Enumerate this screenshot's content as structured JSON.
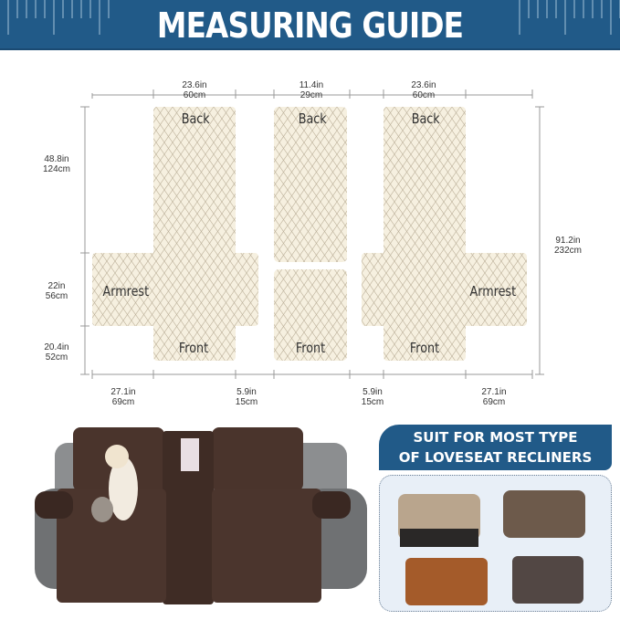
{
  "header": {
    "title": "MEASURING GUIDE",
    "color": "#215a88"
  },
  "top_dims": [
    {
      "in": "23.6in",
      "cm": "60cm"
    },
    {
      "in": "11.4in",
      "cm": "29cm"
    },
    {
      "in": "23.6in",
      "cm": "60cm"
    }
  ],
  "left_dims": [
    {
      "in": "48.8in",
      "cm": "124cm"
    },
    {
      "in": "22in",
      "cm": "56cm"
    },
    {
      "in": "20.4in",
      "cm": "52cm"
    }
  ],
  "right_dim": {
    "in": "91.2in",
    "cm": "232cm"
  },
  "bottom_dims": [
    {
      "in": "27.1in",
      "cm": "69cm"
    },
    {
      "in": "5.9in",
      "cm": "15cm"
    },
    {
      "in": "5.9in",
      "cm": "15cm"
    },
    {
      "in": "27.1in",
      "cm": "69cm"
    }
  ],
  "labels": {
    "back": "Back",
    "front": "Front",
    "armrest": "Armrest"
  },
  "suit": {
    "line1": "SUIT FOR MOST TYPE",
    "line2": "OF LOVESEAT RECLINERS"
  }
}
